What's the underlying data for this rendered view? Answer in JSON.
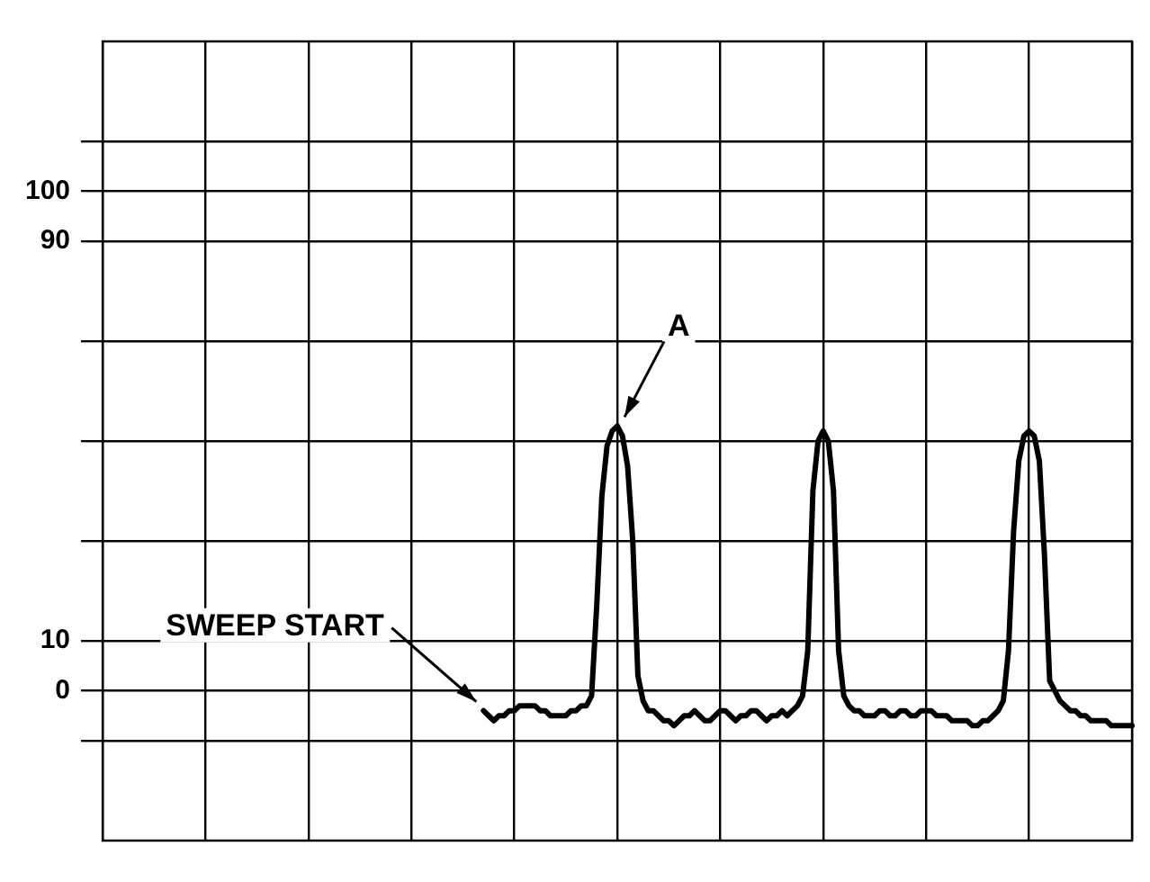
{
  "chart_data": {
    "type": "line",
    "categories": [
      null,
      null,
      null,
      null,
      null,
      null,
      null,
      null,
      null,
      null,
      null,
      null,
      null,
      null,
      null,
      null,
      null,
      null,
      null,
      null,
      null,
      null,
      null,
      null,
      null,
      null,
      null,
      null,
      null,
      null,
      null,
      null,
      null,
      null,
      null,
      null,
      null,
      null,
      null,
      null,
      null,
      null,
      null,
      null,
      null,
      null,
      null,
      null,
      null,
      null,
      null,
      null,
      null,
      null,
      null,
      null,
      null,
      null,
      null,
      null,
      null,
      null,
      null,
      null,
      null,
      null,
      null,
      null,
      null,
      null,
      null,
      null,
      null,
      null,
      null,
      null,
      null,
      null,
      null,
      null,
      null,
      null,
      null,
      null,
      null,
      null,
      null,
      null,
      null,
      null,
      null,
      null,
      null,
      null,
      null,
      null,
      null,
      null,
      null,
      null,
      null,
      null,
      null,
      null,
      null,
      null,
      null,
      null,
      null,
      null,
      null,
      null,
      null,
      null,
      null,
      null,
      null,
      null,
      null,
      null,
      null,
      null,
      null,
      null,
      null,
      null,
      null,
      null,
      null,
      null,
      null,
      null,
      null,
      null,
      null,
      null,
      null,
      null,
      null,
      null,
      null,
      null,
      null,
      null,
      null,
      null,
      null,
      null,
      null,
      null,
      null,
      null,
      null,
      null,
      null,
      null,
      null,
      null,
      null,
      null,
      null,
      null,
      null,
      null,
      null,
      null,
      null,
      null,
      null,
      null,
      null,
      null,
      null,
      null,
      null,
      null,
      null,
      null,
      null,
      null,
      null,
      null,
      null,
      null,
      null,
      null,
      null,
      null,
      null,
      null,
      null,
      null,
      null,
      null,
      null,
      null,
      null,
      null,
      null,
      null,
      null
    ],
    "series": [
      {
        "color": "#000000",
        "values": [
          null,
          null,
          null,
          null,
          null,
          null,
          null,
          null,
          null,
          null,
          null,
          null,
          null,
          null,
          null,
          null,
          null,
          null,
          null,
          null,
          null,
          null,
          null,
          null,
          null,
          null,
          null,
          null,
          null,
          null,
          null,
          null,
          null,
          null,
          null,
          null,
          null,
          null,
          null,
          null,
          null,
          null,
          null,
          null,
          null,
          null,
          null,
          null,
          null,
          null,
          null,
          null,
          null,
          null,
          null,
          null,
          null,
          null,
          null,
          null,
          null,
          null,
          null,
          null,
          null,
          null,
          null,
          null,
          null,
          null,
          null,
          null,
          null,
          null,
          -4,
          -5,
          -6,
          -5,
          -5,
          -4,
          -4,
          -3,
          -3,
          -3,
          -3,
          -4,
          -4,
          -5,
          -5,
          -5,
          -5,
          -4,
          -4,
          -3,
          -3,
          -1,
          17,
          39,
          49,
          52,
          53,
          51,
          45,
          30,
          3,
          -2,
          -4,
          -4,
          -5,
          -6,
          -6,
          -7,
          -6,
          -5,
          -5,
          -4,
          -5,
          -6,
          -6,
          -5,
          -4,
          -4,
          -5,
          -6,
          -5,
          -5,
          -4,
          -4,
          -5,
          -6,
          -5,
          -5,
          -4,
          -5,
          -4,
          -3,
          -1,
          8,
          40,
          50,
          52,
          50,
          40,
          8,
          -1,
          -3,
          -4,
          -4,
          -5,
          -5,
          -5,
          -4,
          -4,
          -5,
          -5,
          -4,
          -4,
          -5,
          -5,
          -4,
          -4,
          -4,
          -5,
          -5,
          -5,
          -6,
          -6,
          -6,
          -6,
          -7,
          -7,
          -6,
          -6,
          -5,
          -4,
          -2,
          8,
          32,
          46,
          51,
          52,
          51,
          46,
          27,
          2,
          0,
          -2,
          -3,
          -4,
          -4,
          -5,
          -5,
          -6,
          -6,
          -6,
          -6,
          -7,
          -7,
          -7,
          -7,
          -7
        ]
      }
    ],
    "ylim": [
      -30,
      130
    ],
    "yticks": [
      {
        "value": -10,
        "label": null
      },
      0,
      10,
      {
        "value": 30,
        "label": null
      },
      {
        "value": 50,
        "label": null
      },
      {
        "value": 70,
        "label": null
      },
      90,
      100,
      {
        "value": 110,
        "label": null
      }
    ],
    "tick_labels": "y",
    "grid": true,
    "legend": false,
    "marker": "none",
    "line_style": "solid",
    "annotations": [
      "SWEEP START",
      "A"
    ]
  }
}
